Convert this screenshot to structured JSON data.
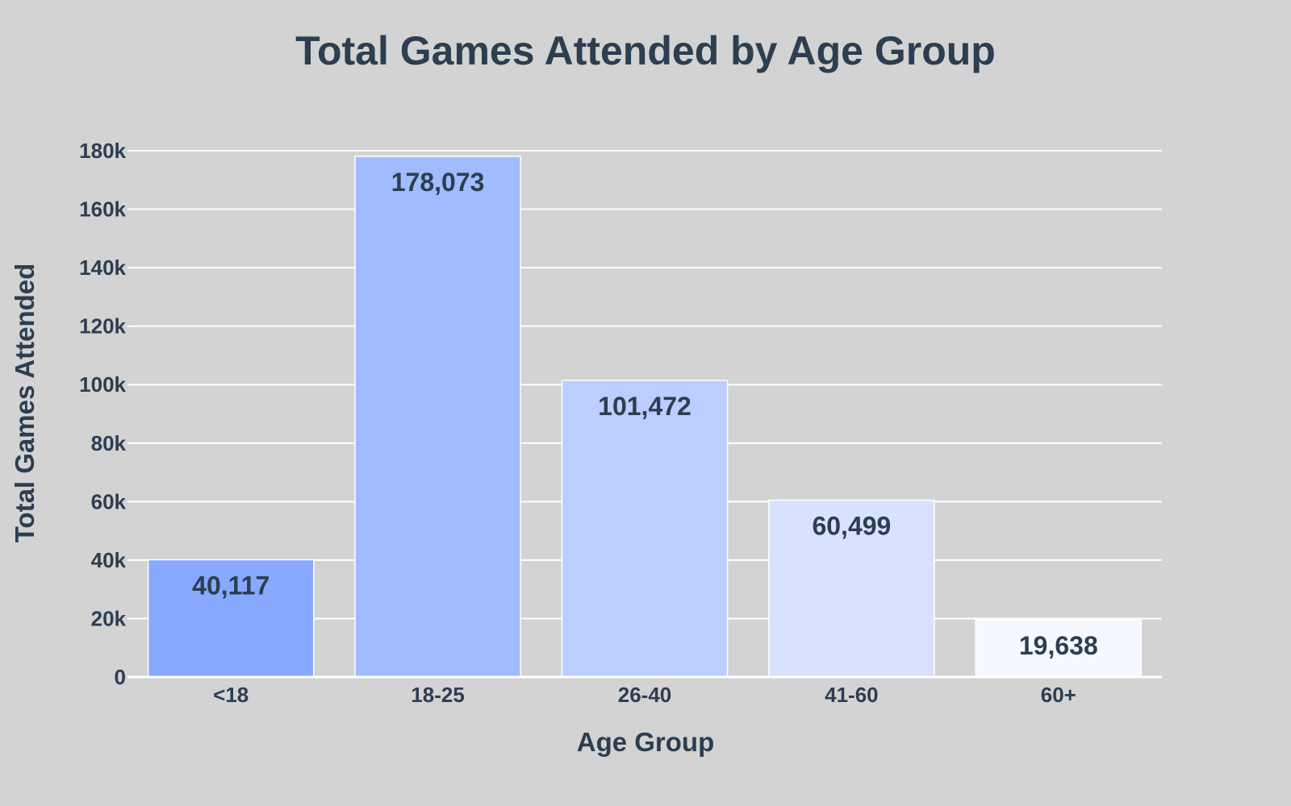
{
  "chart_data": {
    "type": "bar",
    "title": "Total Games Attended by Age Group",
    "xlabel": "Age Group",
    "ylabel": "Total Games Attended",
    "categories": [
      "<18",
      "18-25",
      "26-40",
      "41-60",
      "60+"
    ],
    "values": [
      40117,
      178073,
      101472,
      60499,
      19638
    ],
    "value_labels": [
      "40,117",
      "178,073",
      "101,472",
      "60,499",
      "19,638"
    ],
    "bar_colors": [
      "#87a9ff",
      "#a0bbff",
      "#bccdff",
      "#d8e2ff",
      "#f5f8ff"
    ],
    "ylim": [
      0,
      180000
    ],
    "yticks": [
      0,
      20000,
      40000,
      60000,
      80000,
      100000,
      120000,
      140000,
      160000,
      180000
    ],
    "ytick_labels": [
      "0",
      "20k",
      "40k",
      "60k",
      "80k",
      "100k",
      "120k",
      "140k",
      "160k",
      "180k"
    ],
    "grid": true,
    "legend": false,
    "background_color": "#d3d3d3",
    "text_color": "#2c3e50"
  }
}
